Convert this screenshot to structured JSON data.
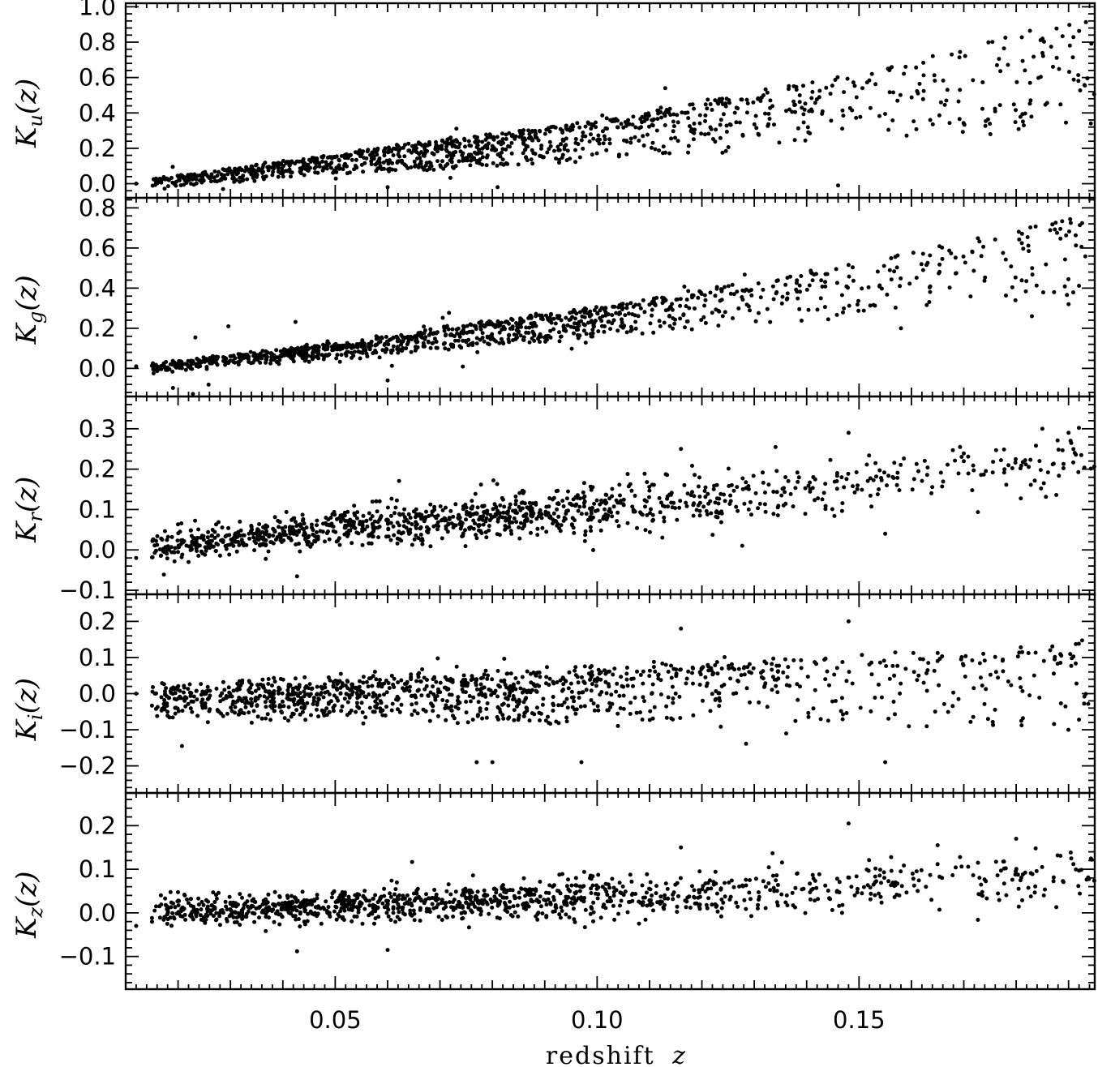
{
  "chart_data": {
    "type": "scatter",
    "layout": "5 vertically stacked panels sharing x axis",
    "x_axis": {
      "label": "redshift",
      "label_symbol": "z",
      "range": [
        0.01,
        0.195
      ],
      "major_ticks": [
        0.05,
        0.1,
        0.15
      ],
      "tick_labels": [
        "0.05",
        "0.10",
        "0.15"
      ]
    },
    "marker": {
      "shape": "filled circle",
      "color": "#000000"
    },
    "panels": [
      {
        "band": "u",
        "ylabel_letter": "K",
        "ylabel_sub": "u",
        "ylabel_arg": "(z)",
        "ylim": [
          -0.08,
          1.02
        ],
        "ticks": [
          0.0,
          0.2,
          0.4,
          0.6,
          0.8,
          1.0
        ],
        "tick_labels": [
          "0.0",
          "0.2",
          "0.4",
          "0.6",
          "0.8",
          "1.0"
        ],
        "upper_envelope": [
          [
            0.01,
            0.0
          ],
          [
            0.05,
            0.16
          ],
          [
            0.1,
            0.35
          ],
          [
            0.15,
            0.62
          ],
          [
            0.19,
            0.92
          ]
        ],
        "spread_fraction": 0.55,
        "spread_growth": 1.0,
        "outlier_fraction": 0.02,
        "points": [
          [
            0.012,
            0.0
          ],
          [
            0.016,
            0.01
          ],
          [
            0.113,
            0.54
          ],
          [
            0.081,
            -0.02
          ],
          [
            0.06,
            -0.02
          ],
          [
            0.146,
            -0.01
          ]
        ]
      },
      {
        "band": "g",
        "ylabel_letter": "K",
        "ylabel_sub": "g",
        "ylabel_arg": "(z)",
        "ylim": [
          -0.14,
          0.85
        ],
        "ticks": [
          0.0,
          0.2,
          0.4,
          0.6,
          0.8
        ],
        "tick_labels": [
          "0.0",
          "0.2",
          "0.4",
          "0.6",
          "0.8"
        ],
        "upper_envelope": [
          [
            0.01,
            0.0
          ],
          [
            0.05,
            0.12
          ],
          [
            0.1,
            0.3
          ],
          [
            0.15,
            0.52
          ],
          [
            0.19,
            0.74
          ]
        ],
        "spread_fraction": 0.4,
        "spread_growth": 1.3,
        "outlier_fraction": 0.02,
        "points": [
          [
            0.012,
            0.01
          ],
          [
            0.016,
            0.01
          ],
          [
            0.06,
            -0.06
          ],
          [
            0.158,
            0.2
          ],
          [
            0.183,
            0.26
          ],
          [
            0.19,
            0.32
          ]
        ]
      },
      {
        "band": "r",
        "ylabel_letter": "K",
        "ylabel_sub": "r",
        "ylabel_arg": "(z)",
        "ylim": [
          -0.11,
          0.38
        ],
        "ticks": [
          -0.1,
          0.0,
          0.1,
          0.2,
          0.3
        ],
        "tick_labels": [
          "−0.1",
          "0.0",
          "0.1",
          "0.2",
          "0.3"
        ],
        "center_line": [
          [
            0.01,
            0.0
          ],
          [
            0.05,
            0.055
          ],
          [
            0.1,
            0.1
          ],
          [
            0.15,
            0.16
          ],
          [
            0.19,
            0.225
          ]
        ],
        "noise": 0.025,
        "outlier_fraction": 0.03,
        "points": [
          [
            0.012,
            -0.02
          ],
          [
            0.022,
            -0.03
          ],
          [
            0.116,
            0.25
          ],
          [
            0.148,
            0.29
          ],
          [
            0.185,
            0.3
          ],
          [
            0.19,
            0.29
          ],
          [
            0.155,
            0.04
          ]
        ]
      },
      {
        "band": "i",
        "ylabel_letter": "K",
        "ylabel_sub": "i",
        "ylabel_arg": "(z)",
        "ylim": [
          -0.275,
          0.275
        ],
        "ticks": [
          -0.2,
          -0.1,
          0.0,
          0.1,
          0.2
        ],
        "tick_labels": [
          "−0.2",
          "−0.1",
          "0.0",
          "0.1",
          "0.2"
        ],
        "upper_envelope": [
          [
            0.01,
            0.0
          ],
          [
            0.05,
            0.035
          ],
          [
            0.1,
            0.06
          ],
          [
            0.15,
            0.1
          ],
          [
            0.19,
            0.13
          ]
        ],
        "spread_fraction": 0.14,
        "spread_growth": 0.0,
        "outlier_fraction": 0.02,
        "points": [
          [
            0.012,
            0.0
          ],
          [
            0.077,
            -0.19
          ],
          [
            0.08,
            -0.19
          ],
          [
            0.097,
            -0.19
          ],
          [
            0.155,
            -0.19
          ],
          [
            0.116,
            0.18
          ],
          [
            0.148,
            0.2
          ]
        ]
      },
      {
        "band": "z",
        "ylabel_letter": "K",
        "ylabel_sub": "z",
        "ylabel_arg": "(z)",
        "ylim": [
          -0.175,
          0.275
        ],
        "ticks": [
          -0.1,
          0.0,
          0.1,
          0.2
        ],
        "tick_labels": [
          "−0.1",
          "0.0",
          "0.1",
          "0.2"
        ],
        "center_line": [
          [
            0.01,
            0.0
          ],
          [
            0.05,
            0.015
          ],
          [
            0.1,
            0.035
          ],
          [
            0.15,
            0.055
          ],
          [
            0.19,
            0.09
          ]
        ],
        "noise": 0.022,
        "outlier_fraction": 0.02,
        "points": [
          [
            0.012,
            -0.03
          ],
          [
            0.06,
            -0.085
          ],
          [
            0.148,
            0.205
          ],
          [
            0.116,
            0.15
          ],
          [
            0.165,
            0.155
          ],
          [
            0.18,
            0.17
          ]
        ]
      }
    ]
  }
}
